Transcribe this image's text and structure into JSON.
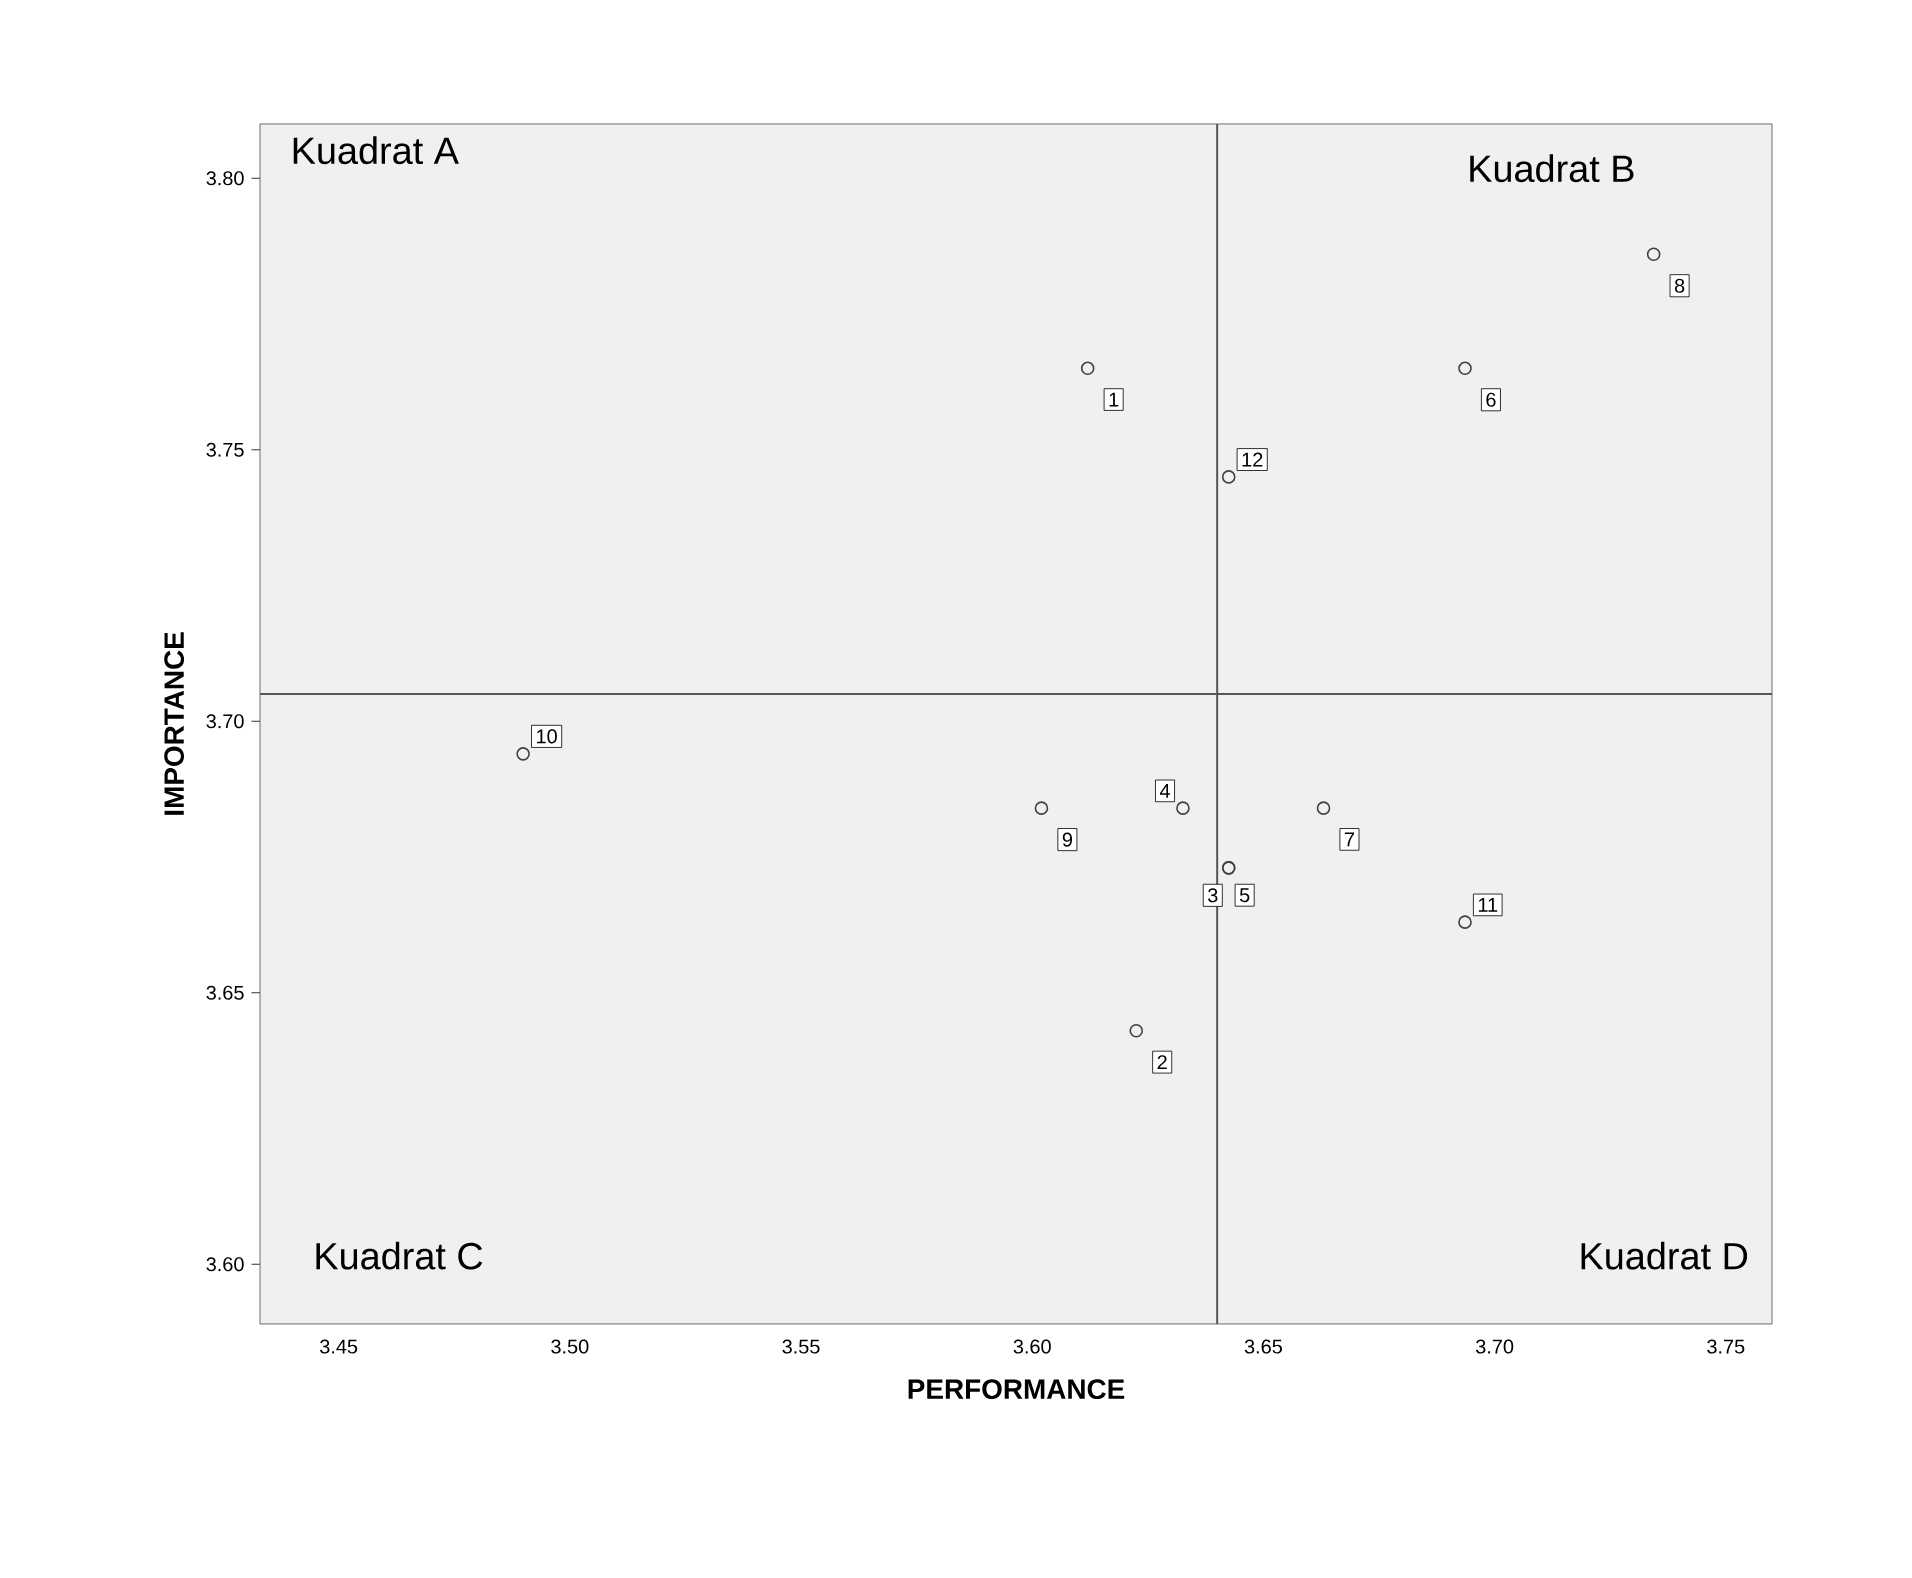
{
  "chart_data": {
    "type": "scatter",
    "xlabel": "PERFORMANCE",
    "ylabel": "IMPORTANCE",
    "x": [
      3.612,
      3.6225,
      3.6425,
      3.6326,
      3.6425,
      3.6936,
      3.663,
      3.7344,
      3.602,
      3.4899,
      3.6936,
      3.6425
    ],
    "series": [
      {
        "color": "#404040",
        "values": [
          3.765,
          3.643,
          3.673,
          3.684,
          3.673,
          3.765,
          3.684,
          3.786,
          3.684,
          3.694,
          3.663,
          3.745
        ]
      }
    ],
    "marker": "circle",
    "grid": false,
    "xlim": [
      3.433,
      3.76
    ],
    "ylim": [
      3.589,
      3.81
    ],
    "xticks": [
      {
        "value": 3.45,
        "label": "3.45"
      },
      {
        "value": 3.5,
        "label": "3.50"
      },
      {
        "value": 3.55,
        "label": "3.55"
      },
      {
        "value": 3.6,
        "label": "3.60"
      },
      {
        "value": 3.65,
        "label": "3.65"
      },
      {
        "value": 3.7,
        "label": "3.70"
      },
      {
        "value": 3.75,
        "label": "3.75"
      }
    ],
    "yticks": [
      {
        "value": 3.6,
        "label": "3.60"
      },
      {
        "value": 3.65,
        "label": "3.65"
      },
      {
        "value": 3.7,
        "label": "3.70"
      },
      {
        "value": 3.75,
        "label": "3.75"
      },
      {
        "value": 3.8,
        "label": "3.80"
      }
    ],
    "ref_lines": [
      {
        "axis": "x",
        "value": 3.64,
        "color": "#555555"
      },
      {
        "axis": "y",
        "value": 3.705,
        "color": "#555555"
      }
    ],
    "annotations": [
      "Kuadrat A",
      "Kuadrat B",
      "Kuadrat C",
      "Kuadrat D",
      {
        "text": "1",
        "x": 3.612,
        "y": 3.765
      },
      {
        "text": "2",
        "x": 3.6225,
        "y": 3.643
      },
      {
        "text": "3",
        "x": 3.6425,
        "y": 3.673
      },
      {
        "text": "4",
        "x": 3.6326,
        "y": 3.684
      },
      {
        "text": "5",
        "x": 3.6425,
        "y": 3.673
      },
      {
        "text": "6",
        "x": 3.6936,
        "y": 3.765
      },
      {
        "text": "7",
        "x": 3.663,
        "y": 3.684
      },
      {
        "text": "8",
        "x": 3.7344,
        "y": 3.786
      },
      {
        "text": "9",
        "x": 3.602,
        "y": 3.684
      },
      {
        "text": "10",
        "x": 3.4899,
        "y": 3.694
      },
      {
        "text": "11",
        "x": 3.6936,
        "y": 3.663
      },
      {
        "text": "12",
        "x": 3.6425,
        "y": 3.745
      }
    ]
  }
}
